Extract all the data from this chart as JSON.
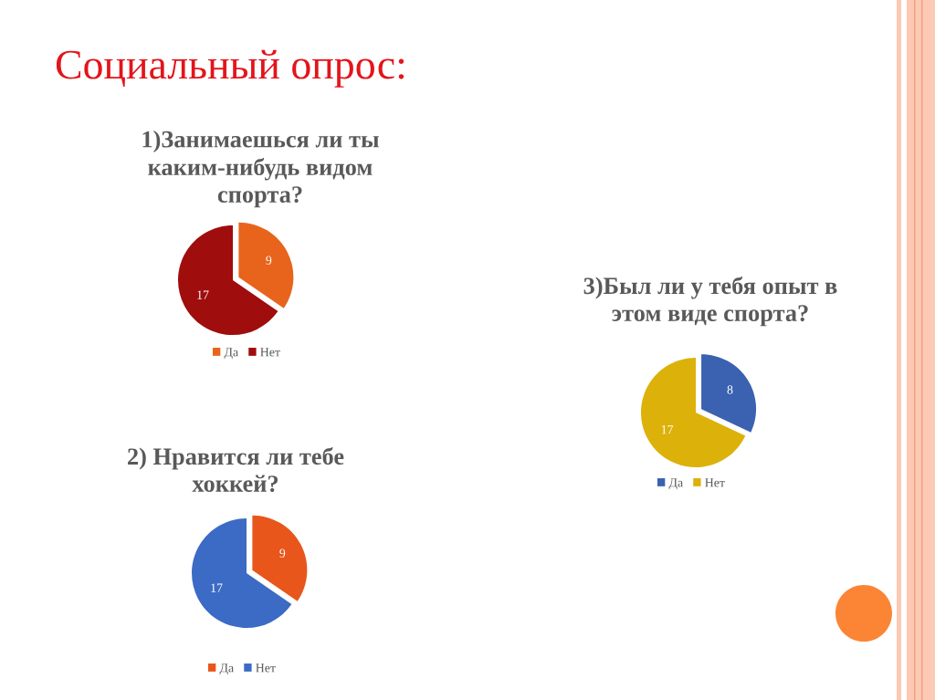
{
  "chart_data": [
    {
      "type": "pie",
      "title": "1)Занимаешься ли ты\nкаким-нибудь видом\nспорта?",
      "annotations": [
        "Социальный опрос:"
      ],
      "categories": [
        "Да",
        "Нет"
      ],
      "values": [
        9,
        17
      ],
      "colors": [
        "#e8641c",
        "#a00d0d"
      ],
      "data_labels": true,
      "legend": "bottom"
    },
    {
      "type": "pie",
      "title": "2) Нравится ли тебе\nхоккей?",
      "categories": [
        "Да",
        "Нет"
      ],
      "values": [
        9,
        17
      ],
      "colors": [
        "#e8561c",
        "#3b6bc4"
      ],
      "data_labels": true,
      "legend": "bottom"
    },
    {
      "type": "pie",
      "title": "3)Был ли у тебя опыт в\nэтом виде спорта?",
      "categories": [
        "Да",
        "Нет"
      ],
      "values": [
        8,
        17
      ],
      "colors": [
        "#3a62b0",
        "#dcb10a"
      ],
      "data_labels": true,
      "legend": "bottom"
    }
  ]
}
